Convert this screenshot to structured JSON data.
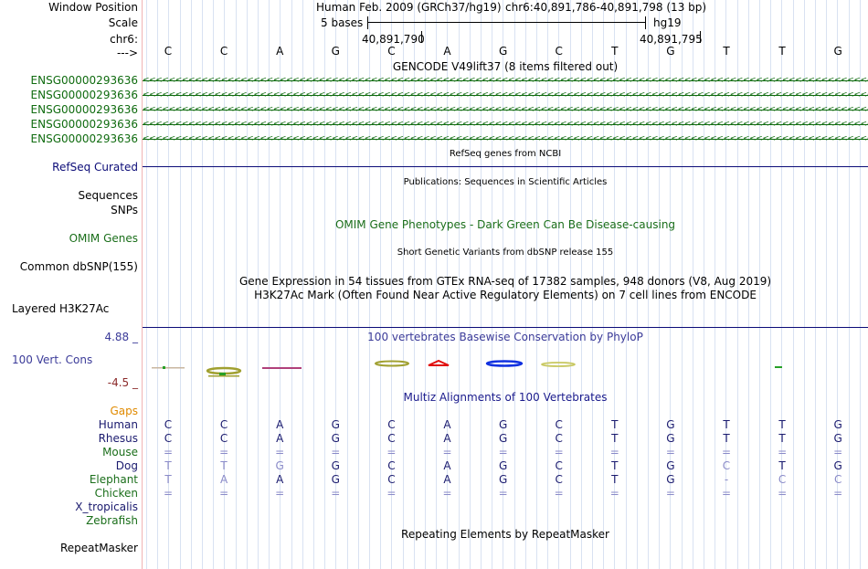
{
  "window_position": {
    "label": "Window Position",
    "assembly": "Human Feb. 2009 (GRCh37/hg19)",
    "range": "chr6:40,891,786-40,891,798 (13 bp)"
  },
  "scale": {
    "label": "Scale",
    "bases": "5 bases",
    "assembly": "hg19"
  },
  "chromosome": {
    "label": "chr6:",
    "coord_left": "40,891,790",
    "coord_right": "40,891,795"
  },
  "strand": {
    "label": "--->"
  },
  "ruler_bases": [
    "C",
    "C",
    "A",
    "G",
    "C",
    "A",
    "G",
    "C",
    "T",
    "G",
    "T",
    "T",
    "G"
  ],
  "gencode": {
    "title": "GENCODE V49lift37 (8 items filtered out)",
    "items": [
      "ENSG00000293636",
      "ENSG00000293636",
      "ENSG00000293636",
      "ENSG00000293636",
      "ENSG00000293636"
    ],
    "color": "#0f6b0f"
  },
  "refseq": {
    "title": "RefSeq genes from NCBI",
    "label": "RefSeq Curated",
    "color": "#0c0c78"
  },
  "publications": {
    "title": "Publications: Sequences in Scientific Articles",
    "label": "Sequences"
  },
  "snps": {
    "label": "SNPs"
  },
  "omim": {
    "title": "OMIM Gene Phenotypes - Dark Green Can Be Disease-causing",
    "label": "OMIM Genes",
    "color": "#1a6e1a"
  },
  "dbsnp": {
    "title": "Short Genetic Variants from dbSNP release 155",
    "label": "Common dbSNP(155)"
  },
  "gtex": {
    "title": "Gene Expression in 54 tissues from GTEx RNA-seq of 17382 samples, 948 donors (V8, Aug 2019)"
  },
  "h3k27ac": {
    "title": "H3K27Ac Mark (Often Found Near Active Regulatory Elements) on 7 cell lines from ENCODE",
    "label": "Layered H3K27Ac"
  },
  "phylop": {
    "title": "100 vertebrates Basewise Conservation by PhyloP",
    "label": "100 Vert. Cons",
    "max": "4.88 _",
    "min": "-4.5 _",
    "color": "#3b3b99"
  },
  "multiz": {
    "title": "Multiz Alignments of 100 Vertebrates",
    "color": "#1a1a8c",
    "gaps_label": "Gaps",
    "gaps_color": "#e08a00",
    "species": [
      {
        "name": "Human",
        "color": "#1a1a6e",
        "bases": [
          "C",
          "C",
          "A",
          "G",
          "C",
          "A",
          "G",
          "C",
          "T",
          "G",
          "T",
          "T",
          "G"
        ]
      },
      {
        "name": "Rhesus",
        "color": "#1a1a6e",
        "bases": [
          "C",
          "C",
          "A",
          "G",
          "C",
          "A",
          "G",
          "C",
          "T",
          "G",
          "T",
          "T",
          "G"
        ]
      },
      {
        "name": "Mouse",
        "color": "#1a6e1a",
        "bases": [
          "=",
          "=",
          "=",
          "=",
          "=",
          "=",
          "=",
          "=",
          "=",
          "=",
          "=",
          "=",
          "="
        ]
      },
      {
        "name": "Dog",
        "color": "#1a1a6e",
        "bases": [
          "T",
          "T",
          "G",
          "G",
          "C",
          "A",
          "G",
          "C",
          "T",
          "G",
          "C",
          "T",
          "G"
        ]
      },
      {
        "name": "Elephant",
        "color": "#1a6e1a",
        "bases": [
          "T",
          "A",
          "A",
          "G",
          "C",
          "A",
          "G",
          "C",
          "T",
          "G",
          "-",
          "C",
          "C"
        ]
      },
      {
        "name": "Chicken",
        "color": "#1a6e1a",
        "bases": [
          "=",
          "=",
          "=",
          "=",
          "=",
          "=",
          "=",
          "=",
          "=",
          "=",
          "=",
          "=",
          "="
        ]
      },
      {
        "name": "X_tropicalis",
        "color": "#1a1a6e",
        "bases": []
      },
      {
        "name": "Zebrafish",
        "color": "#1a6e1a",
        "bases": []
      }
    ]
  },
  "repeatmasker": {
    "title": "Repeating Elements by RepeatMasker",
    "label": "RepeatMasker"
  }
}
